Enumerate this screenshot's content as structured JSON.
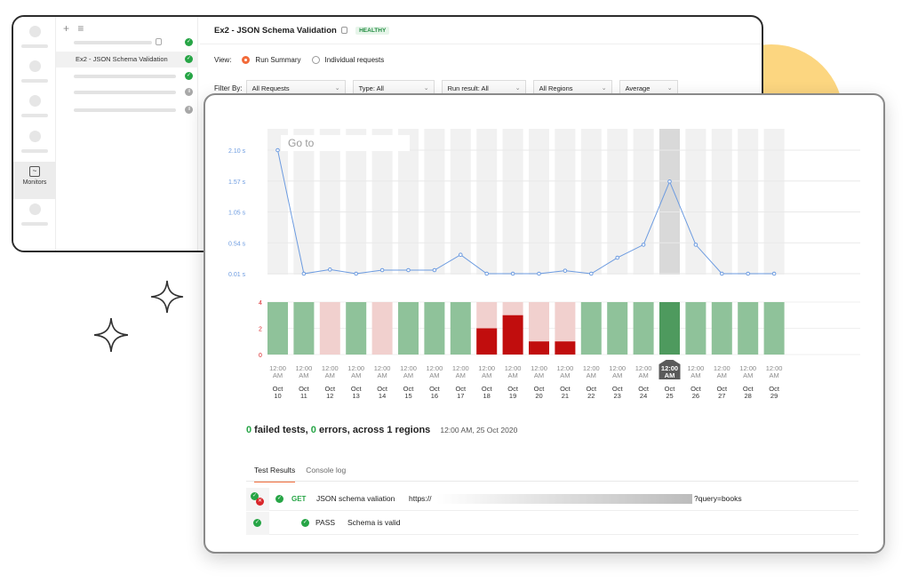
{
  "back": {
    "sidebar_list": {
      "selected_item": "Ex2 - JSON Schema Validation"
    },
    "rail": {
      "monitors_label": "Monitors"
    },
    "monitor_title": "Ex2 - JSON Schema Validation",
    "health_badge": "HEALTHY",
    "view": {
      "label": "View:",
      "options": [
        "Run Summary",
        "Individual requests"
      ],
      "selected": "Run Summary"
    },
    "filters": {
      "label": "Filter By:",
      "requests": "All Requests",
      "type": "Type: All",
      "run_result": "Run result: All",
      "regions": "All Regions",
      "aggregate": "Average"
    }
  },
  "goto_placeholder": "Go to",
  "chart_data": {
    "type": "line",
    "x": [
      "Oct 10",
      "Oct 11",
      "Oct 12",
      "Oct 13",
      "Oct 14",
      "Oct 15",
      "Oct 16",
      "Oct 17",
      "Oct 18",
      "Oct 19",
      "Oct 20",
      "Oct 21",
      "Oct 22",
      "Oct 23",
      "Oct 24",
      "Oct 25",
      "Oct 26",
      "Oct 27",
      "Oct 28",
      "Oct 29"
    ],
    "time_label_line1": "12:00",
    "time_label_line2": "AM",
    "response_time": {
      "yticks": [
        "2.10 s",
        "1.57 s",
        "1.05 s",
        "0.54 s",
        "0.01 s"
      ],
      "ylim": [
        0.01,
        2.1
      ],
      "values": [
        2.1,
        0.01,
        0.08,
        0.01,
        0.07,
        0.07,
        0.07,
        0.33,
        0.01,
        0.01,
        0.01,
        0.06,
        0.01,
        0.28,
        0.5,
        1.57,
        0.5,
        0.01,
        0.01,
        0.01
      ],
      "selected_index": 15
    },
    "test_results": {
      "type": "bar",
      "yticks": [
        "4",
        "2",
        "0"
      ],
      "ylim": [
        0,
        4
      ],
      "total": [
        4,
        4,
        4,
        4,
        4,
        4,
        4,
        4,
        4,
        4,
        4,
        4,
        4,
        4,
        4,
        4,
        4,
        4,
        4,
        4
      ],
      "failed": [
        0,
        0,
        0,
        0,
        0,
        0,
        0,
        0,
        2,
        3,
        1,
        1,
        0,
        0,
        0,
        0,
        0,
        0,
        0,
        0
      ],
      "status": [
        "pass",
        "pass",
        "partial",
        "pass",
        "partial",
        "pass",
        "pass",
        "pass",
        "fail",
        "fail",
        "fail",
        "fail",
        "pass",
        "pass",
        "pass",
        "selected",
        "pass",
        "pass",
        "pass",
        "pass"
      ]
    },
    "colors": {
      "line": "#6c9be0",
      "column_bg": "#f1f1f1",
      "column_selected": "#d9d9d9",
      "pass": "#8fc29a",
      "pass_selected": "#4e9a5e",
      "partial": "#f1d0ce",
      "fail_light": "#f1d0ce",
      "fail": "#c10d0d"
    }
  },
  "summary": {
    "failed_count": "0",
    "failed_text": " failed tests, ",
    "error_count": "0",
    "error_text": " errors, across 1 regions",
    "timestamp": "12:00 AM, 25 Oct 2020"
  },
  "tabs": [
    "Test Results",
    "Console log"
  ],
  "results": {
    "method": "GET",
    "request_name": "JSON schema valiation",
    "url_prefix": "https://",
    "url_suffix": "?query=books",
    "test_status": "PASS",
    "test_name": "Schema is valid"
  }
}
